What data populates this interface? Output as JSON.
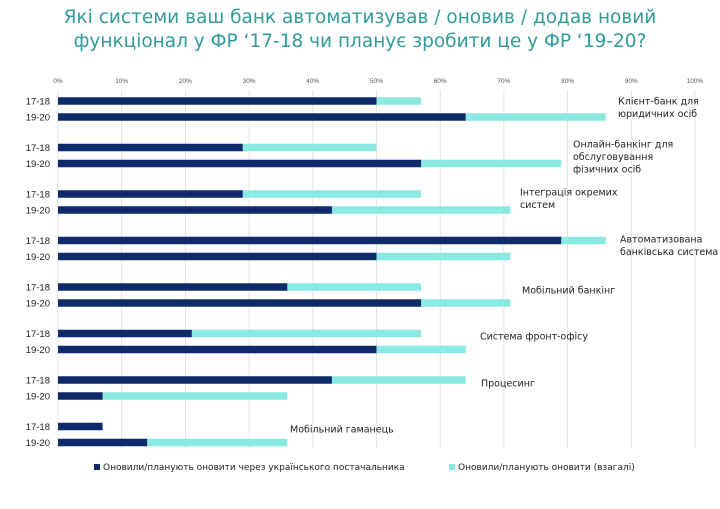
{
  "title": {
    "line1": "Які системи ваш банк автоматизував / оновив / додав новий",
    "line2": "функціонал у ФР ‘17-18 чи планує зробити це у ФР ‘19-20?"
  },
  "colors": {
    "dark": "#0f2a6b",
    "light": "#8aeae2",
    "grid": "#dddddd"
  },
  "chart_data": {
    "type": "bar",
    "orientation": "horizontal",
    "stacked_overlay": true,
    "xlim": [
      0,
      100
    ],
    "x_ticks": [
      "0%",
      "10%",
      "20%",
      "30%",
      "40%",
      "50%",
      "60%",
      "70%",
      "80%",
      "90%",
      "100%"
    ],
    "grid": true,
    "legend_position": "bottom",
    "series": [
      {
        "name": "Оновили/планують оновити через українського постачальника",
        "color": "#0f2a6b"
      },
      {
        "name": "Оновили/планують оновити (взагалі)",
        "color": "#8aeae2"
      }
    ],
    "groups": [
      {
        "category": [
          "Клієнт-банк для",
          "юридичних осіб"
        ],
        "periods": [
          "17-18",
          "19-20"
        ],
        "ukrainian": [
          50,
          64
        ],
        "total": [
          57,
          86
        ]
      },
      {
        "category": [
          "Онлайн-банкінг для",
          "обслуговування",
          "фізичних осіб"
        ],
        "periods": [
          "17-18",
          "19-20"
        ],
        "ukrainian": [
          29,
          57
        ],
        "total": [
          50,
          79
        ]
      },
      {
        "category": [
          "Інтеграція окремих",
          "систем"
        ],
        "periods": [
          "17-18",
          "19-20"
        ],
        "ukrainian": [
          29,
          43
        ],
        "total": [
          57,
          71
        ]
      },
      {
        "category": [
          "Автоматизована",
          "банківська система"
        ],
        "periods": [
          "17-18",
          "19-20"
        ],
        "ukrainian": [
          79,
          50
        ],
        "total": [
          86,
          71
        ]
      },
      {
        "category": [
          "Мобільний банкінг"
        ],
        "periods": [
          "17-18",
          "19-20"
        ],
        "ukrainian": [
          36,
          57
        ],
        "total": [
          57,
          71
        ]
      },
      {
        "category": [
          "Система фронт-офісу"
        ],
        "periods": [
          "17-18",
          "19-20"
        ],
        "ukrainian": [
          21,
          50
        ],
        "total": [
          57,
          64
        ]
      },
      {
        "category": [
          "Процесинг"
        ],
        "periods": [
          "17-18",
          "19-20"
        ],
        "ukrainian": [
          43,
          7
        ],
        "total": [
          64,
          36
        ]
      },
      {
        "category": [
          "Мобільний гаманець"
        ],
        "periods": [
          "17-18",
          "19-20"
        ],
        "ukrainian": [
          7,
          14
        ],
        "total": [
          7,
          36
        ]
      }
    ]
  }
}
